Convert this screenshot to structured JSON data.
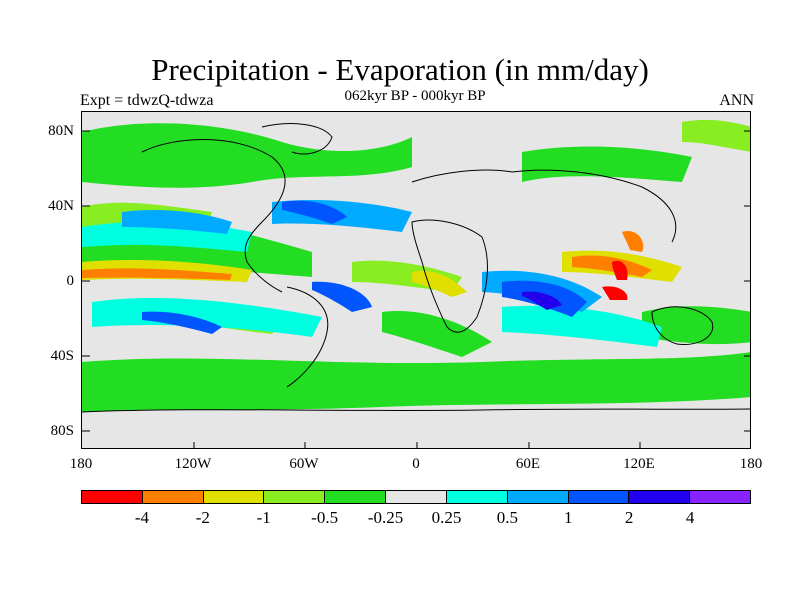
{
  "title": "Precipitation - Evaporation (in mm/day)",
  "subtitle": "062kyr BP - 000kyr BP",
  "experiment": "Expt = tdwzQ-tdwza",
  "season": "ANN",
  "map": {
    "lat_labels": [
      "80N",
      "40N",
      "0",
      "40S",
      "80S"
    ],
    "lon_labels": [
      "180",
      "120W",
      "60W",
      "0",
      "60E",
      "120E",
      "180"
    ],
    "background_color": "#e6e6e6"
  },
  "colorbar": {
    "colors": [
      "#ff0000",
      "#ff8000",
      "#e0e000",
      "#88ee22",
      "#22dd22",
      "#e6e6e6",
      "#00ffe0",
      "#00aaff",
      "#0055ff",
      "#2200ee",
      "#8822ff"
    ],
    "labels": [
      "-4",
      "-2",
      "-1",
      "-0.5",
      "-0.25",
      "0.25",
      "0.5",
      "1",
      "2",
      "4"
    ]
  }
}
